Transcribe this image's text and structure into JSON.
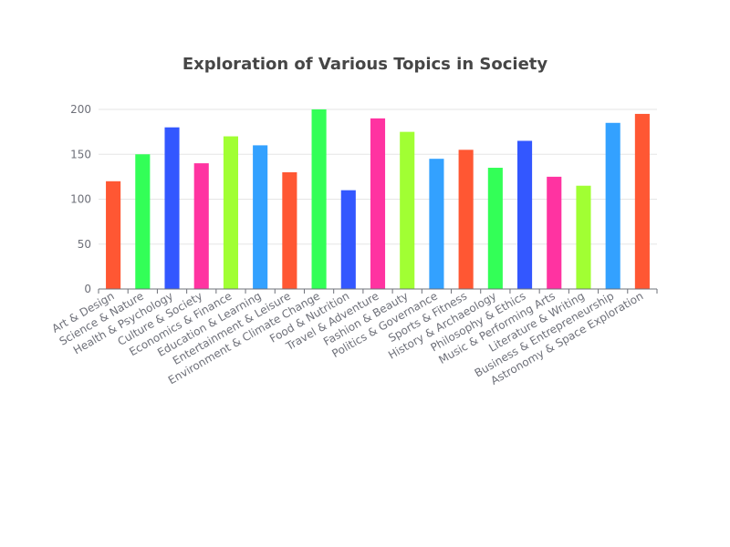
{
  "chart_data": {
    "type": "bar",
    "title": "Exploration of Various Topics in Society",
    "xlabel": "",
    "ylabel": "",
    "ylim": [
      0,
      200
    ],
    "yticks": [
      0,
      50,
      100,
      150,
      200
    ],
    "grid": true,
    "legend": "none",
    "categories": [
      "Art & Design",
      "Science & Nature",
      "Health & Psychology",
      "Culture & Society",
      "Economics & Finance",
      "Education & Learning",
      "Entertainment & Leisure",
      "Environment & Climate Change",
      "Food & Nutrition",
      "Travel & Adventure",
      "Fashion & Beauty",
      "Politics & Governance",
      "Sports & Fitness",
      "History & Archaeology",
      "Philosophy & Ethics",
      "Music & Performing Arts",
      "Literature & Writing",
      "Business & Entrepreneurship",
      "Astronomy & Space Exploration"
    ],
    "values": [
      120,
      150,
      180,
      140,
      170,
      160,
      130,
      200,
      110,
      190,
      175,
      145,
      155,
      135,
      165,
      125,
      115,
      185,
      195
    ],
    "colors": [
      "#FF5733",
      "#33FF57",
      "#3357FF",
      "#FF33A1",
      "#A1FF33",
      "#33A1FF",
      "#FF5733",
      "#33FF57",
      "#3357FF",
      "#FF33A1",
      "#A1FF33",
      "#33A1FF",
      "#FF5733",
      "#33FF57",
      "#3357FF",
      "#FF33A1",
      "#A1FF33",
      "#33A1FF",
      "#FF5733"
    ]
  }
}
